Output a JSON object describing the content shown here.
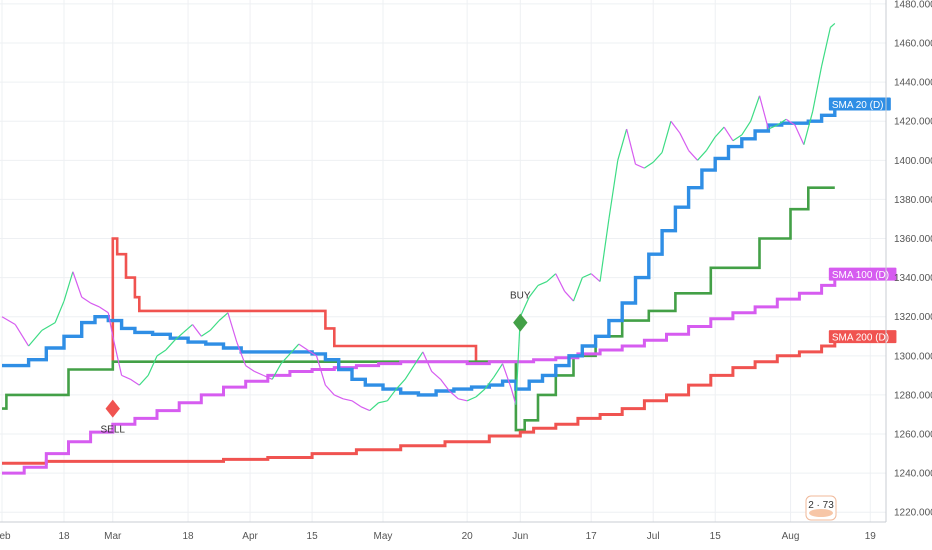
{
  "chart_data": {
    "type": "line",
    "y_axis": {
      "position": "right",
      "range": [
        1215,
        1482
      ],
      "ticks": [
        "1220.000",
        "1240.000",
        "1260.000",
        "1280.000",
        "1300.000",
        "1320.000",
        "1340.000",
        "1360.000",
        "1380.000",
        "1400.000",
        "1420.000",
        "1440.000",
        "1460.000",
        "1480.000"
      ]
    },
    "x_axis": {
      "ticks": [
        {
          "label": "Feb",
          "day": 0
        },
        {
          "label": "18",
          "day": 14
        },
        {
          "label": "Mar",
          "day": 25
        },
        {
          "label": "18",
          "day": 42
        },
        {
          "label": "Apr",
          "day": 56
        },
        {
          "label": "15",
          "day": 70
        },
        {
          "label": "May",
          "day": 86
        },
        {
          "label": "20",
          "day": 105
        },
        {
          "label": "Jun",
          "day": 117
        },
        {
          "label": "17",
          "day": 133
        },
        {
          "label": "Jul",
          "day": 147
        },
        {
          "label": "15",
          "day": 161
        },
        {
          "label": "Aug",
          "day": 178
        },
        {
          "label": "19",
          "day": 196
        }
      ]
    },
    "grid": true,
    "series": [
      {
        "name": "",
        "role": "price",
        "color_up": "#3ddc84",
        "color_down": "#d65cf0",
        "points": [
          [
            0,
            1320
          ],
          [
            3,
            1316
          ],
          [
            6,
            1305
          ],
          [
            9,
            1313
          ],
          [
            12,
            1317
          ],
          [
            14,
            1328
          ],
          [
            16,
            1343
          ],
          [
            18,
            1330
          ],
          [
            20,
            1327
          ],
          [
            22,
            1325
          ],
          [
            24,
            1322
          ],
          [
            25,
            1310
          ],
          [
            27,
            1290
          ],
          [
            29,
            1288
          ],
          [
            31,
            1285
          ],
          [
            33,
            1290
          ],
          [
            35,
            1300
          ],
          [
            37,
            1303
          ],
          [
            39,
            1308
          ],
          [
            41,
            1312
          ],
          [
            43,
            1316
          ],
          [
            45,
            1310
          ],
          [
            47,
            1313
          ],
          [
            49,
            1318
          ],
          [
            51,
            1322
          ],
          [
            53,
            1307
          ],
          [
            55,
            1295
          ],
          [
            57,
            1292
          ],
          [
            59,
            1290
          ],
          [
            61,
            1288
          ],
          [
            63,
            1296
          ],
          [
            65,
            1301
          ],
          [
            67,
            1306
          ],
          [
            69,
            1303
          ],
          [
            71,
            1300
          ],
          [
            73,
            1285
          ],
          [
            75,
            1280
          ],
          [
            77,
            1278
          ],
          [
            79,
            1277
          ],
          [
            81,
            1274
          ],
          [
            83,
            1272
          ],
          [
            85,
            1276
          ],
          [
            87,
            1277
          ],
          [
            89,
            1283
          ],
          [
            91,
            1288
          ],
          [
            93,
            1295
          ],
          [
            95,
            1302
          ],
          [
            97,
            1292
          ],
          [
            99,
            1288
          ],
          [
            101,
            1282
          ],
          [
            103,
            1278
          ],
          [
            105,
            1277
          ],
          [
            107,
            1279
          ],
          [
            109,
            1283
          ],
          [
            111,
            1289
          ],
          [
            113,
            1296
          ],
          [
            115,
            1283
          ],
          [
            116,
            1275
          ],
          [
            117,
            1320
          ],
          [
            119,
            1330
          ],
          [
            121,
            1336
          ],
          [
            123,
            1338
          ],
          [
            125,
            1342
          ],
          [
            127,
            1333
          ],
          [
            129,
            1328
          ],
          [
            131,
            1340
          ],
          [
            133,
            1342
          ],
          [
            135,
            1338
          ],
          [
            137,
            1370
          ],
          [
            139,
            1400
          ],
          [
            141,
            1416
          ],
          [
            143,
            1398
          ],
          [
            145,
            1396
          ],
          [
            147,
            1399
          ],
          [
            149,
            1404
          ],
          [
            151,
            1420
          ],
          [
            153,
            1414
          ],
          [
            155,
            1405
          ],
          [
            157,
            1400
          ],
          [
            159,
            1405
          ],
          [
            161,
            1412
          ],
          [
            163,
            1417
          ],
          [
            165,
            1410
          ],
          [
            167,
            1413
          ],
          [
            169,
            1420
          ],
          [
            171,
            1433
          ],
          [
            173,
            1416
          ],
          [
            175,
            1418
          ],
          [
            177,
            1421
          ],
          [
            179,
            1418
          ],
          [
            181,
            1408
          ],
          [
            183,
            1425
          ],
          [
            185,
            1448
          ],
          [
            187,
            1468
          ],
          [
            188,
            1470
          ]
        ]
      },
      {
        "name": "SMA 20 (D)",
        "color": "#2f8ee5",
        "points": [
          [
            0,
            1295
          ],
          [
            6,
            1298
          ],
          [
            10,
            1304
          ],
          [
            14,
            1310
          ],
          [
            18,
            1317
          ],
          [
            21,
            1320
          ],
          [
            24,
            1318
          ],
          [
            27,
            1314
          ],
          [
            30,
            1312
          ],
          [
            34,
            1311
          ],
          [
            38,
            1309
          ],
          [
            42,
            1307
          ],
          [
            46,
            1306
          ],
          [
            50,
            1304
          ],
          [
            54,
            1302
          ],
          [
            60,
            1302
          ],
          [
            66,
            1302
          ],
          [
            70,
            1301
          ],
          [
            73,
            1298
          ],
          [
            76,
            1293
          ],
          [
            79,
            1288
          ],
          [
            82,
            1285
          ],
          [
            86,
            1283
          ],
          [
            90,
            1281
          ],
          [
            94,
            1280
          ],
          [
            98,
            1282
          ],
          [
            102,
            1283
          ],
          [
            106,
            1284
          ],
          [
            110,
            1285
          ],
          [
            113,
            1287
          ],
          [
            116,
            1283
          ],
          [
            119,
            1287
          ],
          [
            122,
            1290
          ],
          [
            125,
            1295
          ],
          [
            128,
            1300
          ],
          [
            131,
            1305
          ],
          [
            134,
            1310
          ],
          [
            137,
            1318
          ],
          [
            140,
            1327
          ],
          [
            143,
            1340
          ],
          [
            146,
            1352
          ],
          [
            149,
            1364
          ],
          [
            152,
            1376
          ],
          [
            155,
            1386
          ],
          [
            158,
            1395
          ],
          [
            161,
            1401
          ],
          [
            164,
            1407
          ],
          [
            167,
            1411
          ],
          [
            170,
            1415
          ],
          [
            173,
            1418
          ],
          [
            176,
            1419
          ],
          [
            179,
            1419
          ],
          [
            182,
            1420
          ],
          [
            185,
            1423
          ],
          [
            188,
            1426
          ]
        ]
      },
      {
        "name": "SMA 100 (D)",
        "color": "#d65cf0",
        "points": [
          [
            0,
            1240
          ],
          [
            5,
            1243
          ],
          [
            10,
            1250
          ],
          [
            15,
            1256
          ],
          [
            20,
            1261
          ],
          [
            25,
            1265
          ],
          [
            30,
            1268
          ],
          [
            35,
            1272
          ],
          [
            40,
            1276
          ],
          [
            45,
            1280
          ],
          [
            50,
            1284
          ],
          [
            55,
            1287
          ],
          [
            60,
            1290
          ],
          [
            65,
            1292
          ],
          [
            70,
            1293
          ],
          [
            75,
            1294
          ],
          [
            80,
            1295
          ],
          [
            85,
            1296
          ],
          [
            90,
            1297
          ],
          [
            95,
            1297
          ],
          [
            100,
            1297
          ],
          [
            105,
            1296
          ],
          [
            110,
            1297
          ],
          [
            115,
            1297
          ],
          [
            120,
            1298
          ],
          [
            125,
            1299
          ],
          [
            130,
            1301
          ],
          [
            135,
            1303
          ],
          [
            140,
            1305
          ],
          [
            145,
            1308
          ],
          [
            150,
            1311
          ],
          [
            155,
            1315
          ],
          [
            160,
            1319
          ],
          [
            165,
            1322
          ],
          [
            170,
            1325
          ],
          [
            175,
            1329
          ],
          [
            180,
            1332
          ],
          [
            185,
            1336
          ],
          [
            188,
            1339
          ]
        ]
      },
      {
        "name": "SMA 200 (D)",
        "color": "#f05350",
        "points": [
          [
            0,
            1245
          ],
          [
            10,
            1246
          ],
          [
            20,
            1246
          ],
          [
            30,
            1246
          ],
          [
            40,
            1246
          ],
          [
            50,
            1247
          ],
          [
            60,
            1248
          ],
          [
            70,
            1250
          ],
          [
            80,
            1252
          ],
          [
            90,
            1254
          ],
          [
            100,
            1256
          ],
          [
            110,
            1259
          ],
          [
            117,
            1261
          ],
          [
            120,
            1263
          ],
          [
            125,
            1265
          ],
          [
            130,
            1268
          ],
          [
            135,
            1270
          ],
          [
            140,
            1273
          ],
          [
            145,
            1277
          ],
          [
            150,
            1280
          ],
          [
            155,
            1285
          ],
          [
            160,
            1290
          ],
          [
            165,
            1294
          ],
          [
            170,
            1297
          ],
          [
            175,
            1300
          ],
          [
            180,
            1302
          ],
          [
            185,
            1305
          ],
          [
            188,
            1307
          ]
        ]
      },
      {
        "name": "",
        "role": "support",
        "color": "#43a047",
        "step": true,
        "points": [
          [
            0,
            1273
          ],
          [
            1,
            1280
          ],
          [
            15,
            1280
          ],
          [
            15,
            1293
          ],
          [
            25,
            1293
          ],
          [
            25,
            1297
          ],
          [
            116,
            1297
          ],
          [
            116,
            1262
          ],
          [
            118,
            1262
          ],
          [
            118,
            1267
          ],
          [
            121,
            1267
          ],
          [
            121,
            1280
          ],
          [
            125,
            1280
          ],
          [
            125,
            1290
          ],
          [
            129,
            1290
          ],
          [
            129,
            1300
          ],
          [
            134,
            1300
          ],
          [
            134,
            1310
          ],
          [
            140,
            1310
          ],
          [
            140,
            1318
          ],
          [
            146,
            1318
          ],
          [
            146,
            1323
          ],
          [
            152,
            1323
          ],
          [
            152,
            1332
          ],
          [
            160,
            1332
          ],
          [
            160,
            1345
          ],
          [
            171,
            1345
          ],
          [
            171,
            1360
          ],
          [
            178,
            1360
          ],
          [
            178,
            1375
          ],
          [
            182,
            1375
          ],
          [
            182,
            1386
          ],
          [
            188,
            1386
          ]
        ]
      },
      {
        "name": "",
        "role": "resistance",
        "color": "#f05350",
        "step": true,
        "points": [
          [
            25,
            1297
          ],
          [
            25,
            1360
          ],
          [
            26,
            1352
          ],
          [
            28,
            1340
          ],
          [
            30,
            1330
          ],
          [
            31,
            1323
          ],
          [
            71,
            1323
          ],
          [
            73,
            1314
          ],
          [
            75,
            1305
          ],
          [
            105,
            1305
          ],
          [
            107,
            1297
          ],
          [
            117,
            1297
          ]
        ]
      }
    ],
    "annotations": [
      {
        "text": "SELL",
        "day": 25,
        "value": 1273,
        "color": "#f05350"
      },
      {
        "text": "BUY",
        "day": 117,
        "value": 1317,
        "color": "#43a047"
      }
    ],
    "badge": "2 · 73"
  }
}
